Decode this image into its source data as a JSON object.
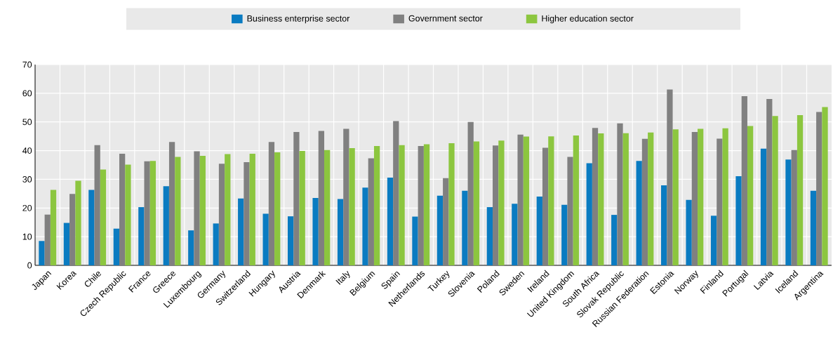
{
  "chart_data": {
    "type": "bar",
    "categories": [
      "Japan",
      "Korea",
      "Chile",
      "Czech Republic",
      "France",
      "Greece",
      "Luxembourg",
      "Germany",
      "Switzerland",
      "Hungary",
      "Austria",
      "Denmark",
      "Italy",
      "Belgium",
      "Spain",
      "Netherlands",
      "Turkey",
      "Slovenia",
      "Poland",
      "Sweden",
      "Ireland",
      "United Kingdom",
      "South Africa",
      "Slovak Republic",
      "Russian Federation",
      "Estonia",
      "Norway",
      "Finland",
      "Portugal",
      "Latvia",
      "Iceland",
      "Argentina"
    ],
    "series": [
      {
        "name": "Business enterprise sector",
        "color": "#0a7bc1",
        "values": [
          8.5,
          14.8,
          26.3,
          12.8,
          20.3,
          27.6,
          12.2,
          14.6,
          23.3,
          18.0,
          17.1,
          23.5,
          23.1,
          27.1,
          30.6,
          17.0,
          24.3,
          26.0,
          20.3,
          21.5,
          24.0,
          21.1,
          35.6,
          17.6,
          36.4,
          27.9,
          22.8,
          17.3,
          31.1,
          40.7,
          36.9,
          26.0
        ]
      },
      {
        "name": "Government sector",
        "color": "#808080",
        "values": [
          17.7,
          24.9,
          41.9,
          38.9,
          36.3,
          43.0,
          39.8,
          35.4,
          36.0,
          43.0,
          46.5,
          46.9,
          47.6,
          37.3,
          50.3,
          41.6,
          30.4,
          50.0,
          41.8,
          45.6,
          41.0,
          37.8,
          47.9,
          49.5,
          44.1,
          61.3,
          46.5,
          44.2,
          59.0,
          58.0,
          40.2,
          53.5
        ]
      },
      {
        "name": "Higher education sector",
        "color": "#8cc63f",
        "values": [
          26.3,
          29.5,
          33.4,
          35.1,
          36.4,
          37.8,
          38.2,
          38.8,
          38.9,
          39.4,
          39.9,
          40.2,
          40.9,
          41.6,
          41.9,
          42.2,
          42.6,
          43.2,
          43.5,
          44.9,
          45.0,
          45.3,
          46.0,
          46.1,
          46.3,
          47.4,
          47.6,
          47.8,
          48.6,
          52.1,
          52.4,
          55.2
        ]
      }
    ],
    "ylim": [
      0,
      70
    ],
    "yticks": [
      0,
      10,
      20,
      30,
      40,
      50,
      60,
      70
    ],
    "grid": true,
    "legend": "top"
  }
}
